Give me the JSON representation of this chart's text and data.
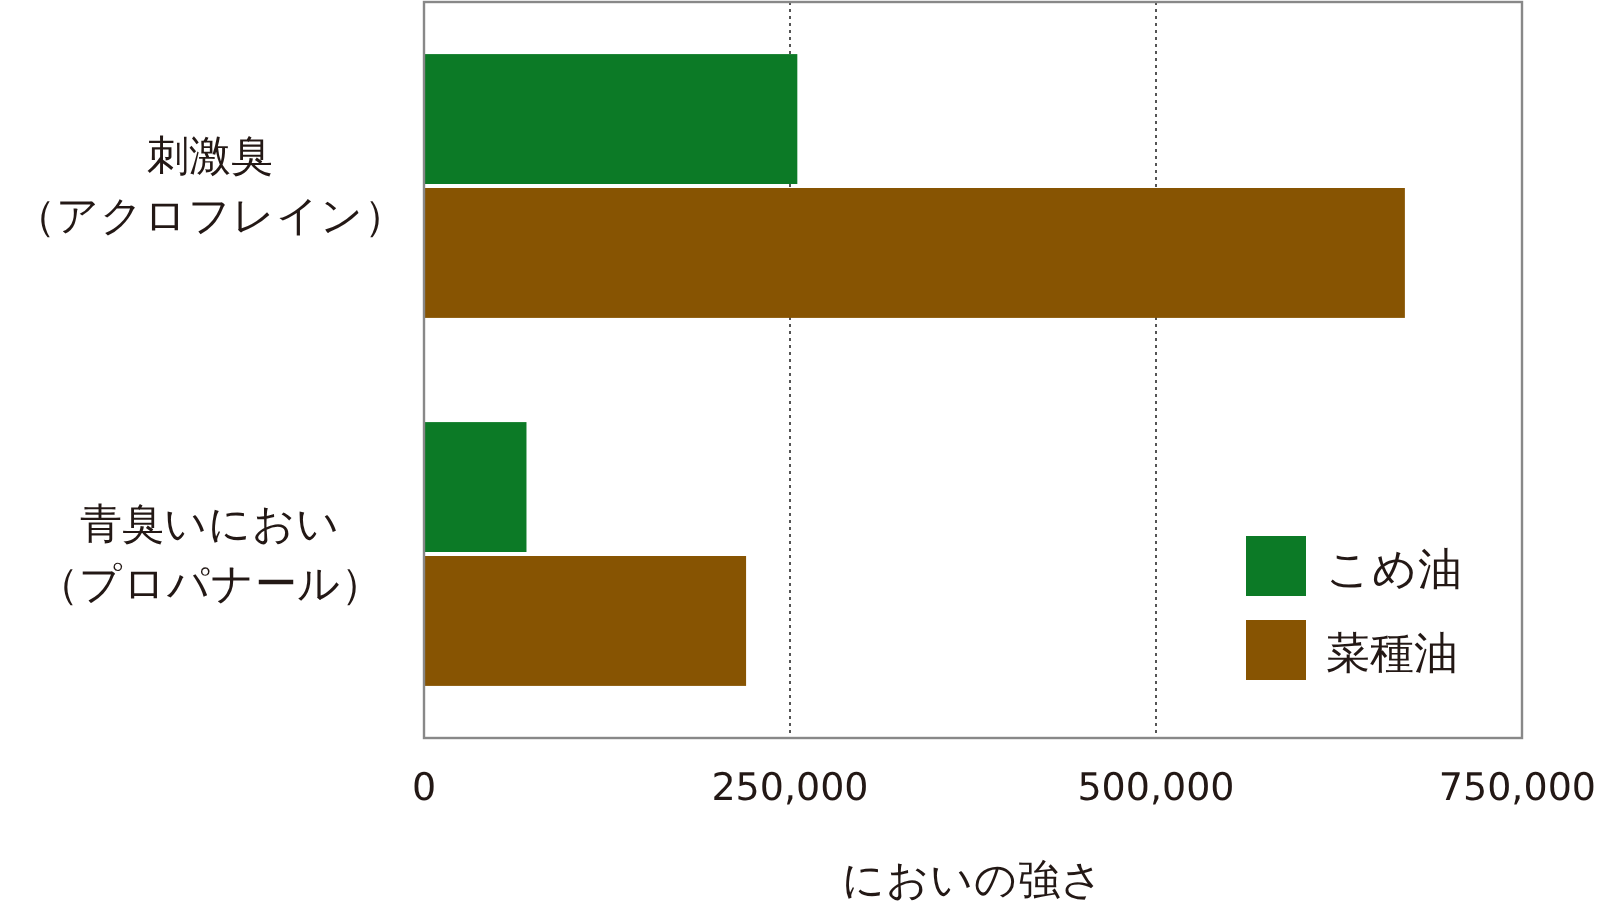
{
  "chart_data": {
    "type": "bar",
    "orientation": "horizontal",
    "xlabel": "においの強さ",
    "categories": [
      "刺激臭（アクロフレイン）",
      "青臭いにおい（プロパナール）"
    ],
    "series": [
      {
        "name": "こめ油",
        "color": "#0c7a26",
        "values": [
          255000,
          70000
        ]
      },
      {
        "name": "菜種油",
        "color": "#875402",
        "values": [
          670000,
          220000
        ]
      }
    ],
    "xlim": [
      0,
      750000
    ],
    "xticks": [
      {
        "value": 0,
        "label": "0"
      },
      {
        "value": 250000,
        "label": "250,000"
      },
      {
        "value": 500000,
        "label": "500,000"
      },
      {
        "value": 750000,
        "label": "750,000"
      }
    ],
    "grid": "x",
    "legend": "bottom right"
  }
}
